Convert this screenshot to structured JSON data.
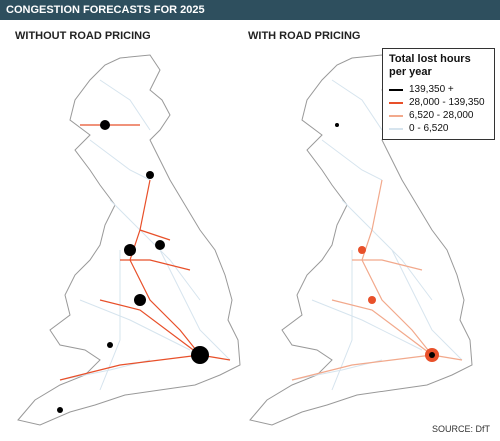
{
  "header": {
    "title": "CONGESTION FORECASTS FOR 2025"
  },
  "maps": [
    {
      "title": "WITHOUT ROAD PRICING"
    },
    {
      "title": "WITH ROAD PRICING"
    }
  ],
  "legend": {
    "title": "Total lost hours per year",
    "items": [
      {
        "label": "139,350 +",
        "color": "#000000"
      },
      {
        "label": "28,000 - 139,350",
        "color": "#e8502a"
      },
      {
        "label": "6,520 - 28,000",
        "color": "#f2a98c"
      },
      {
        "label": "0 - 6,520",
        "color": "#d6e4ee"
      }
    ]
  },
  "source": "SOURCE: DfT"
}
